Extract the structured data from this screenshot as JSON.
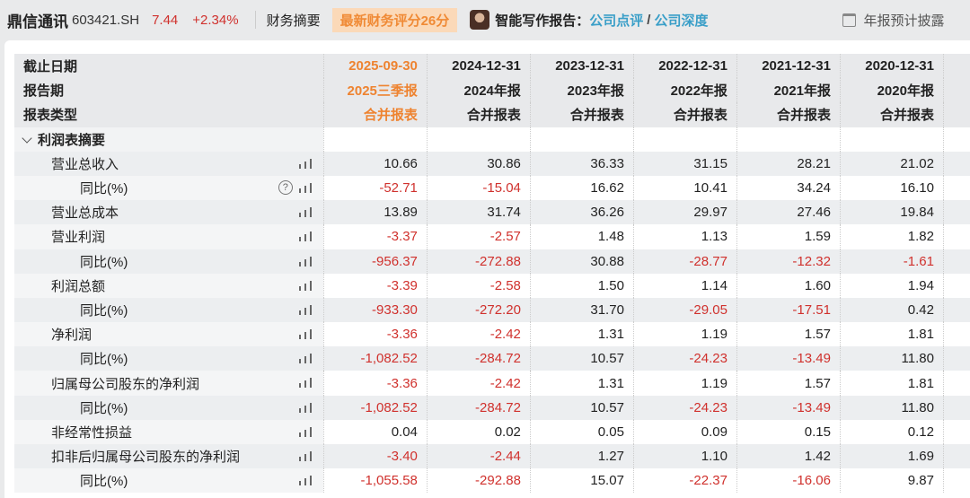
{
  "header": {
    "name": "鼎信通讯",
    "code": "603421.SH",
    "price": "7.44",
    "change": "+2.34%",
    "tab": "财务摘要",
    "score_badge": "最新财务评分26分",
    "ai_label": "智能写作报告：",
    "link1": "公司点评",
    "slash": "/",
    "link2": "公司深度",
    "forecast": "年报预计披露"
  },
  "colors": {
    "accent": "#ee8330",
    "negative": "#d0312d",
    "link": "#3a9fc8"
  },
  "table": {
    "header_rows": [
      {
        "label": "截止日期",
        "values": [
          "2025-09-30",
          "2024-12-31",
          "2023-12-31",
          "2022-12-31",
          "2021-12-31",
          "2020-12-31"
        ]
      },
      {
        "label": "报告期",
        "values": [
          "2025三季报",
          "2024年报",
          "2023年报",
          "2022年报",
          "2021年报",
          "2020年报"
        ]
      },
      {
        "label": "报表类型",
        "values": [
          "合并报表",
          "合并报表",
          "合并报表",
          "合并报表",
          "合并报表",
          "合并报表"
        ]
      }
    ],
    "section": "利润表摘要",
    "rows": [
      {
        "label": "营业总收入",
        "level": 1,
        "values": [
          "10.66",
          "30.86",
          "36.33",
          "31.15",
          "28.21",
          "21.02"
        ]
      },
      {
        "label": "同比(%)",
        "level": 2,
        "help": true,
        "values": [
          "-52.71",
          "-15.04",
          "16.62",
          "10.41",
          "34.24",
          "16.10"
        ]
      },
      {
        "label": "营业总成本",
        "level": 1,
        "values": [
          "13.89",
          "31.74",
          "36.26",
          "29.97",
          "27.46",
          "19.84"
        ]
      },
      {
        "label": "营业利润",
        "level": 1,
        "values": [
          "-3.37",
          "-2.57",
          "1.48",
          "1.13",
          "1.59",
          "1.82"
        ]
      },
      {
        "label": "同比(%)",
        "level": 2,
        "values": [
          "-956.37",
          "-272.88",
          "30.88",
          "-28.77",
          "-12.32",
          "-1.61"
        ]
      },
      {
        "label": "利润总额",
        "level": 1,
        "values": [
          "-3.39",
          "-2.58",
          "1.50",
          "1.14",
          "1.60",
          "1.94"
        ]
      },
      {
        "label": "同比(%)",
        "level": 2,
        "values": [
          "-933.30",
          "-272.20",
          "31.70",
          "-29.05",
          "-17.51",
          "0.42"
        ]
      },
      {
        "label": "净利润",
        "level": 1,
        "values": [
          "-3.36",
          "-2.42",
          "1.31",
          "1.19",
          "1.57",
          "1.81"
        ]
      },
      {
        "label": "同比(%)",
        "level": 2,
        "values": [
          "-1,082.52",
          "-284.72",
          "10.57",
          "-24.23",
          "-13.49",
          "11.80"
        ]
      },
      {
        "label": "归属母公司股东的净利润",
        "level": 1,
        "values": [
          "-3.36",
          "-2.42",
          "1.31",
          "1.19",
          "1.57",
          "1.81"
        ]
      },
      {
        "label": "同比(%)",
        "level": 2,
        "values": [
          "-1,082.52",
          "-284.72",
          "10.57",
          "-24.23",
          "-13.49",
          "11.80"
        ]
      },
      {
        "label": "非经常性损益",
        "level": 1,
        "values": [
          "0.04",
          "0.02",
          "0.05",
          "0.09",
          "0.15",
          "0.12"
        ]
      },
      {
        "label": "扣非后归属母公司股东的净利润",
        "level": 1,
        "values": [
          "-3.40",
          "-2.44",
          "1.27",
          "1.10",
          "1.42",
          "1.69"
        ]
      },
      {
        "label": "同比(%)",
        "level": 2,
        "values": [
          "-1,055.58",
          "-292.88",
          "15.07",
          "-22.37",
          "-16.06",
          "9.87"
        ]
      }
    ]
  }
}
